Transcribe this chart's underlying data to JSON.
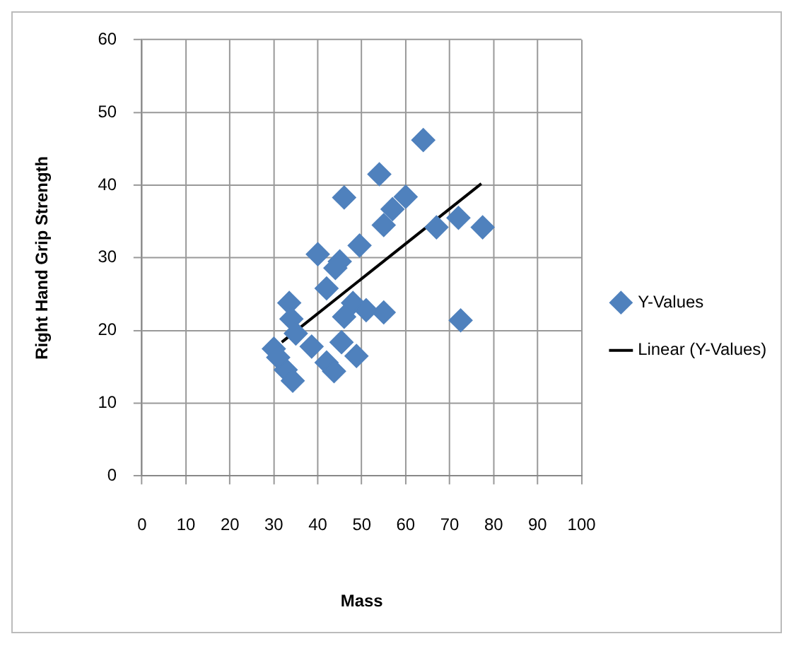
{
  "chart_data": {
    "type": "scatter",
    "xlabel": "Mass",
    "ylabel": "Right Hand Grip Strength",
    "xlim": [
      0,
      100
    ],
    "xticks": [
      0,
      10,
      20,
      30,
      40,
      50,
      60,
      70,
      80,
      90,
      100
    ],
    "ylim": [
      0,
      60
    ],
    "yticks": [
      0,
      10,
      20,
      30,
      40,
      50,
      60
    ],
    "grid": true,
    "legend": "right",
    "series": [
      {
        "name": "Y-Values",
        "marker": "diamond",
        "color": "#4f81bd",
        "x": [
          64,
          54,
          46,
          60,
          57,
          55,
          67,
          72,
          77.5,
          49.5,
          40,
          45,
          44,
          42,
          33.5,
          48,
          55,
          51,
          46,
          34,
          72.5,
          35,
          30,
          38.6,
          45.4,
          48.8,
          42,
          32.7,
          43.7,
          34.3,
          31
        ],
        "values": [
          46.2,
          41.5,
          38.3,
          38.4,
          36.7,
          34.5,
          34.2,
          35.5,
          34.2,
          31.7,
          30.5,
          29.5,
          28.6,
          25.8,
          23.8,
          23.8,
          22.5,
          22.8,
          21.9,
          21.6,
          21.4,
          19.6,
          17.5,
          17.8,
          18.4,
          16.5,
          15.6,
          14.6,
          14.4,
          13.1,
          16.3
        ]
      },
      {
        "name": "Linear (Y-Values)",
        "type": "line",
        "marker": "none",
        "color": "#000000",
        "x": [
          31.8,
          77.2
        ],
        "values": [
          18.4,
          40.2
        ]
      }
    ]
  }
}
